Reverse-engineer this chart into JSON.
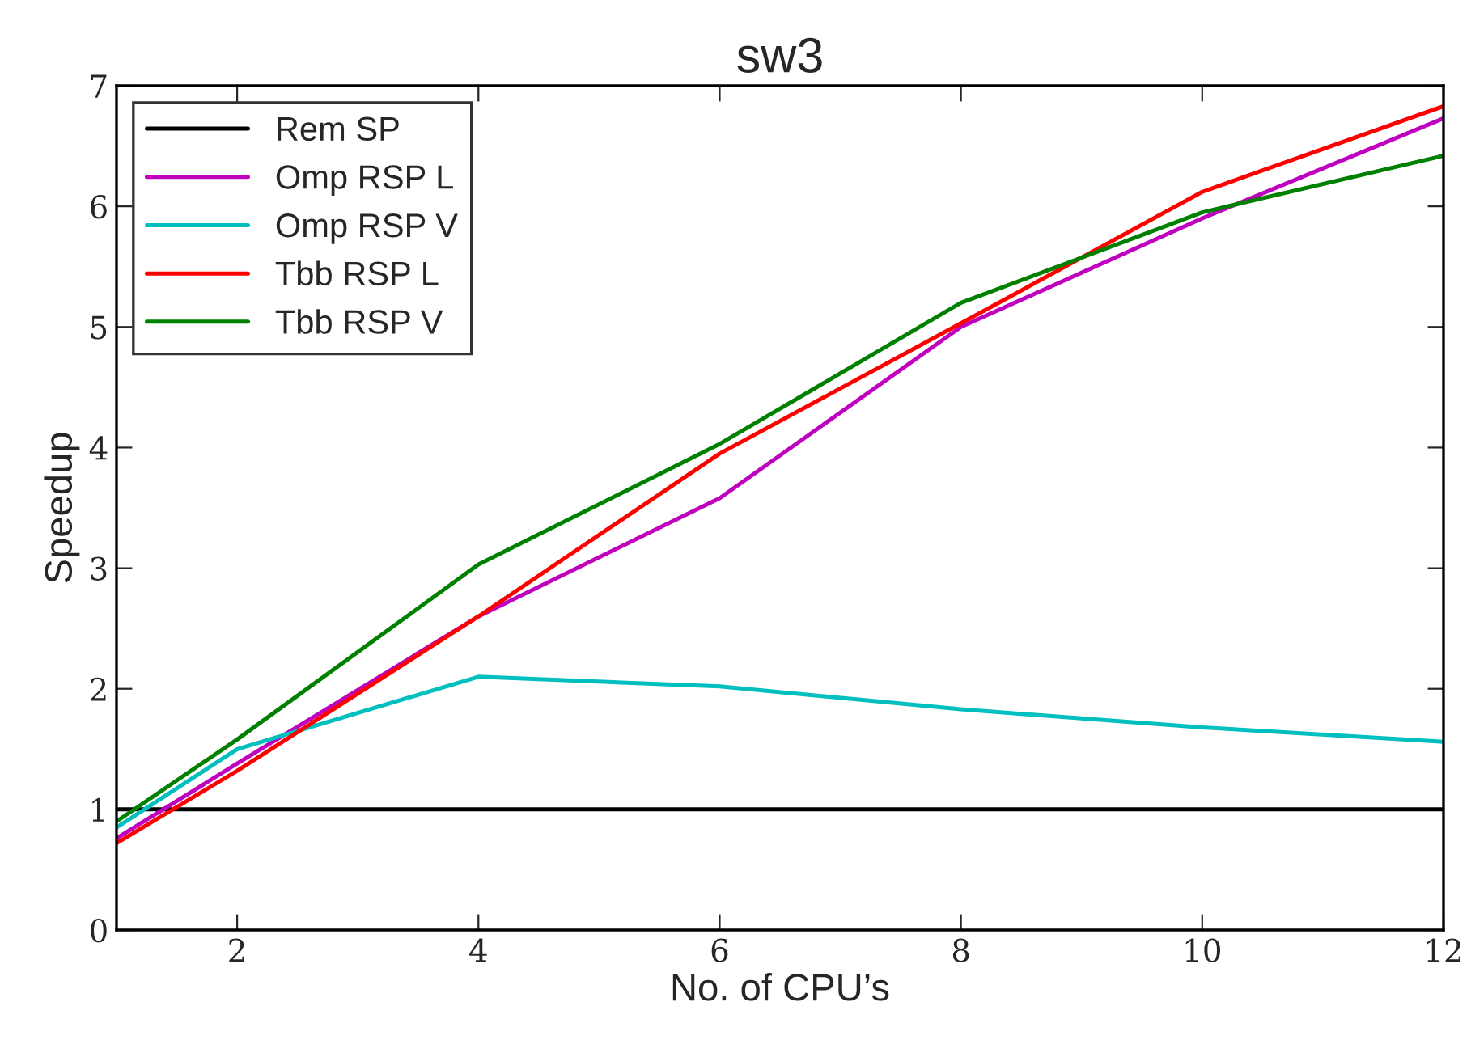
{
  "chart_data": {
    "type": "line",
    "title": "sw3",
    "xlabel": "No. of CPU’s",
    "ylabel": "Speedup",
    "x": [
      1,
      2,
      4,
      6,
      8,
      10,
      12
    ],
    "series": [
      {
        "name": "Rem SP",
        "color": "#000000",
        "values": [
          1,
          1,
          1,
          1,
          1,
          1,
          1
        ]
      },
      {
        "name": "Omp RSP L",
        "color": "#bf00bf",
        "values": [
          0.76,
          1.38,
          2.6,
          3.58,
          5.0,
          5.9,
          6.73
        ]
      },
      {
        "name": "Omp RSP V",
        "color": "#00bfbf",
        "values": [
          0.85,
          1.5,
          2.1,
          2.02,
          1.83,
          1.68,
          1.56
        ]
      },
      {
        "name": "Tbb RSP L",
        "color": "#ff0000",
        "values": [
          0.72,
          1.32,
          2.6,
          3.95,
          5.03,
          6.12,
          6.83
        ]
      },
      {
        "name": "Tbb RSP V",
        "color": "#008000",
        "values": [
          0.9,
          1.58,
          3.03,
          4.03,
          5.2,
          5.95,
          6.42
        ]
      }
    ],
    "xlim": [
      1,
      12
    ],
    "ylim": [
      0,
      7
    ],
    "xticks": [
      2,
      4,
      6,
      8,
      10,
      12
    ],
    "yticks": [
      0,
      1,
      2,
      3,
      4,
      5,
      6,
      7
    ],
    "legend": "top left",
    "grid": false,
    "marker": "none",
    "line_style": "solid"
  }
}
